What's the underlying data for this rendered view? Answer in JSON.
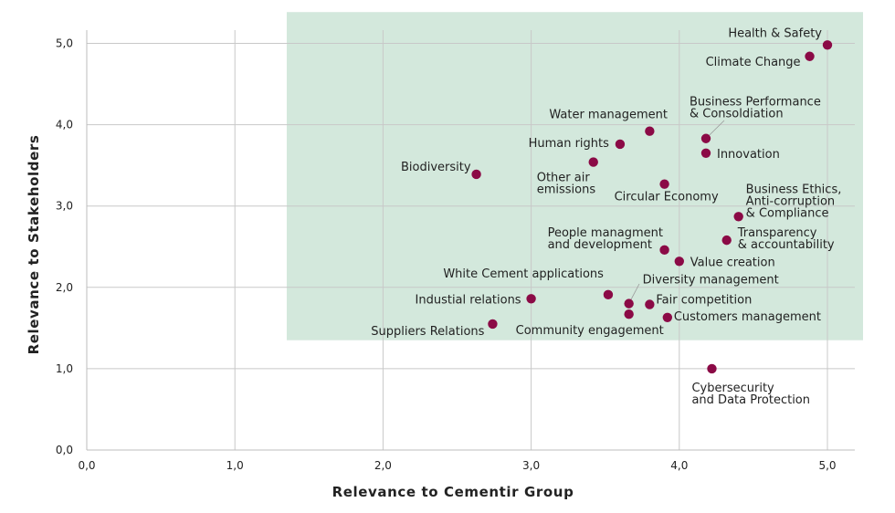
{
  "chart_data": {
    "type": "scatter",
    "xlabel": "Relevance to Cementir Group",
    "ylabel": "Relevance to Stakeholders",
    "xlim": [
      0,
      5.2
    ],
    "ylim": [
      0,
      5.2
    ],
    "x_ticks": [
      "0,0",
      "1,0",
      "2,0",
      "3,0",
      "4,0",
      "5,0"
    ],
    "y_ticks": [
      "0,0",
      "1,0",
      "2,0",
      "3,0",
      "4,0",
      "5,0"
    ],
    "grid": true,
    "highlight_region": {
      "x": [
        1.35,
        5.25
      ],
      "y": [
        1.35,
        5.25
      ],
      "color": "#d3e8dc"
    },
    "marker_color": "#8b0a46",
    "points": [
      {
        "label": [
          "Health & Safety"
        ],
        "x": 5.0,
        "y": 4.98
      },
      {
        "label": [
          "Climate Change"
        ],
        "x": 4.88,
        "y": 4.84
      },
      {
        "label": [
          "Business Performance",
          "& Consoldiation"
        ],
        "x": 4.18,
        "y": 3.83
      },
      {
        "label": [
          "Innovation"
        ],
        "x": 4.18,
        "y": 3.65
      },
      {
        "label": [
          "Water management"
        ],
        "x": 3.8,
        "y": 3.92
      },
      {
        "label": [
          "Human rights"
        ],
        "x": 3.6,
        "y": 3.76
      },
      {
        "label": [
          "Other air",
          "emissions"
        ],
        "x": 3.42,
        "y": 3.54
      },
      {
        "label": [
          "Biodiversity"
        ],
        "x": 2.63,
        "y": 3.39
      },
      {
        "label": [
          "Circular Economy"
        ],
        "x": 3.9,
        "y": 3.27
      },
      {
        "label": [
          "Business Ethics,",
          "Anti-corruption",
          "& Compliance"
        ],
        "x": 4.4,
        "y": 2.87
      },
      {
        "label": [
          "Transparency",
          "& accountability"
        ],
        "x": 4.32,
        "y": 2.58
      },
      {
        "label": [
          "People managment",
          "and development"
        ],
        "x": 3.9,
        "y": 2.46
      },
      {
        "label": [
          "Value creation"
        ],
        "x": 4.0,
        "y": 2.32
      },
      {
        "label": [
          "White Cement applications"
        ],
        "x": 3.52,
        "y": 1.91
      },
      {
        "label": [
          "Diversity management"
        ],
        "x": 3.66,
        "y": 1.8
      },
      {
        "label": [
          "Fair competition"
        ],
        "x": 3.8,
        "y": 1.79
      },
      {
        "label": [
          "Industial relations"
        ],
        "x": 3.0,
        "y": 1.86
      },
      {
        "label": [
          "Community engagement"
        ],
        "x": 3.66,
        "y": 1.67
      },
      {
        "label": [
          "Customers management"
        ],
        "x": 3.92,
        "y": 1.63
      },
      {
        "label": [
          "Suppliers Relations"
        ],
        "x": 2.74,
        "y": 1.55
      },
      {
        "label": [
          "Cybersecurity",
          "and Data Protection"
        ],
        "x": 4.22,
        "y": 1.0
      }
    ]
  }
}
